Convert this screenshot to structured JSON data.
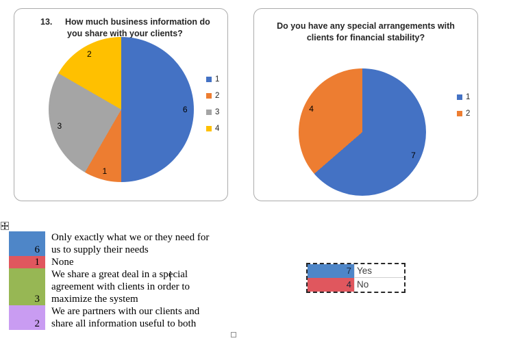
{
  "chart_data": [
    {
      "type": "pie",
      "title_number": "13.",
      "title_lines": [
        "How much business information do",
        "you share with your clients?"
      ],
      "title": "13. How much business information do you share with your clients?",
      "labels": [
        "1",
        "2",
        "3",
        "4"
      ],
      "values": [
        6,
        1,
        3,
        2
      ],
      "data_labels": [
        "6",
        "1",
        "3",
        "2"
      ],
      "colors": [
        "#4472C4",
        "#ED7D31",
        "#A5A5A5",
        "#FFC000"
      ],
      "legend_position": "right",
      "start_angle_deg": 0,
      "direction": "clockwise"
    },
    {
      "type": "pie",
      "title_lines": [
        "Do you have any special arrangements with",
        "clients for financial stability?"
      ],
      "title": "Do you have any special arrangements with clients for financial stability?",
      "labels": [
        "1",
        "2"
      ],
      "values": [
        7,
        4
      ],
      "data_labels": [
        "7",
        "4"
      ],
      "colors": [
        "#4472C4",
        "#ED7D31"
      ],
      "legend_position": "right",
      "start_angle_deg": 0,
      "direction": "clockwise"
    }
  ],
  "answer_key_table": {
    "rows": [
      {
        "value": "6",
        "color": "#4E86C8",
        "lines": [
          "Only exactly what we or they need for",
          "us to supply their needs"
        ]
      },
      {
        "value": "1",
        "color": "#E0575E",
        "lines": [
          "None"
        ]
      },
      {
        "value": "3",
        "color": "#97B754",
        "lines": [
          "We share a great deal in a special",
          "agreement with clients in order to",
          "maximize the system"
        ]
      },
      {
        "value": "2",
        "color": "#C99CF2",
        "lines": [
          "We are partners with our clients and",
          "share all information useful to both"
        ]
      }
    ]
  },
  "yes_no_table": {
    "rows": [
      {
        "value": "7",
        "label": "Yes",
        "color": "#4E86C8"
      },
      {
        "value": "4",
        "label": "No",
        "color": "#E0575E"
      }
    ]
  },
  "icons": {
    "move_handle": "move-cross-icon",
    "small_checkbox": "empty-square"
  }
}
